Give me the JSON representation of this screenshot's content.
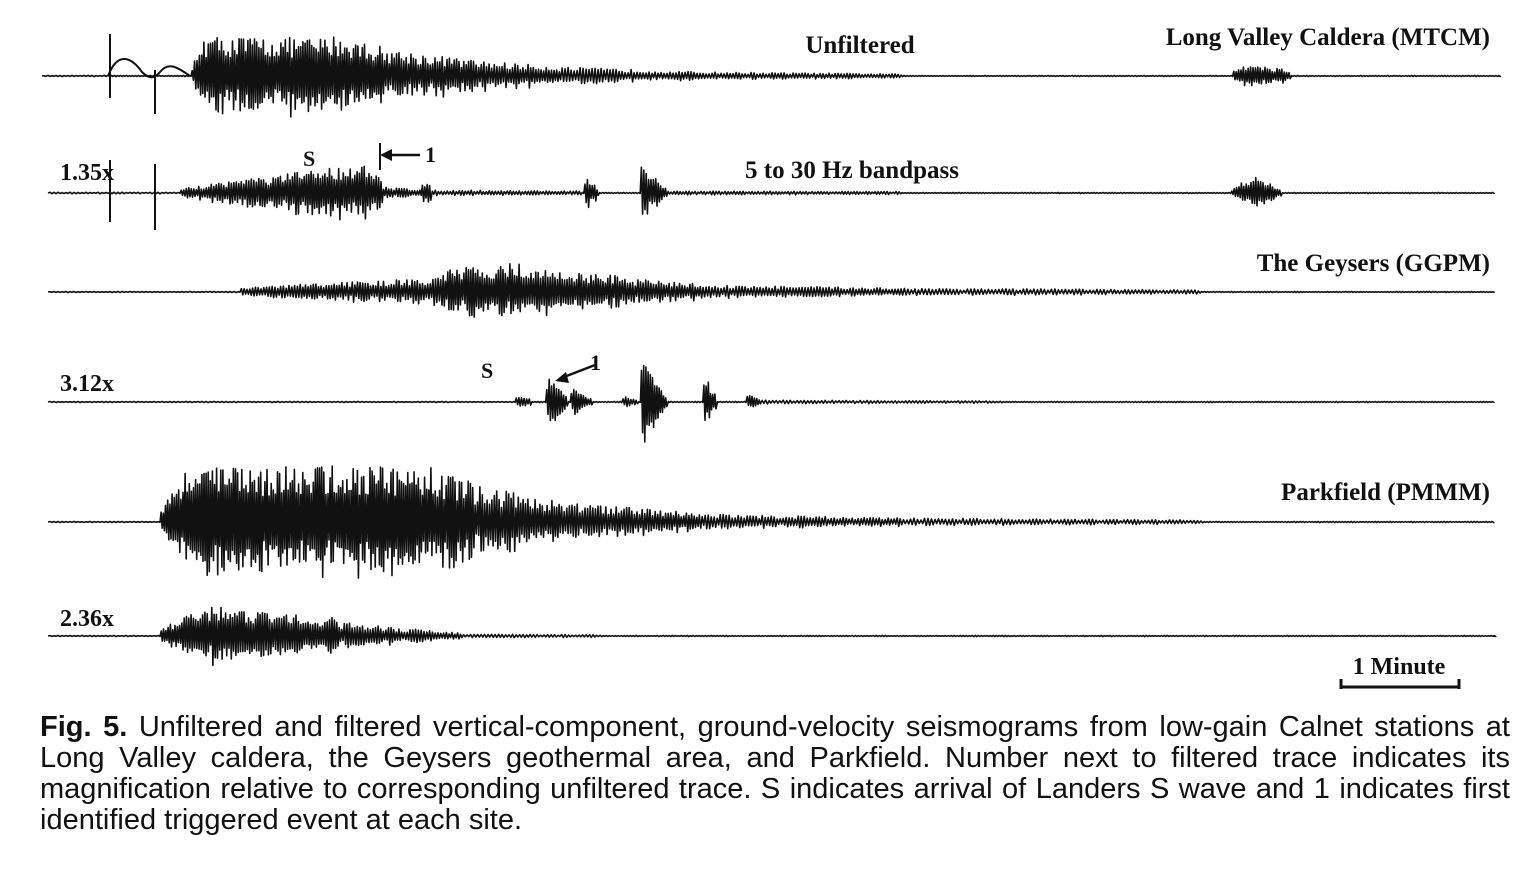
{
  "figure": {
    "traces": [
      {
        "id": "mtcm-unfiltered",
        "station_label": "Long Valley Caldera (MTCM)",
        "filter_label": "Unfiltered",
        "magnification": ""
      },
      {
        "id": "mtcm-filtered",
        "station_label": "",
        "filter_label": "5 to 30 Hz bandpass",
        "magnification": "1.35x"
      },
      {
        "id": "ggpm-unfiltered",
        "station_label": "The Geysers (GGPM)",
        "filter_label": "",
        "magnification": ""
      },
      {
        "id": "ggpm-filtered",
        "station_label": "",
        "filter_label": "",
        "magnification": "3.12x"
      },
      {
        "id": "pmmm-unfiltered",
        "station_label": "Parkfield (PMMM)",
        "filter_label": "",
        "magnification": ""
      },
      {
        "id": "pmmm-filtered",
        "station_label": "",
        "filter_label": "",
        "magnification": "2.36x"
      }
    ],
    "annotations": {
      "s_label": "S",
      "event_label": "1"
    },
    "scale_bar": {
      "label": "1 Minute"
    }
  },
  "caption": {
    "fig_label": "Fig. 5.",
    "text": "Unfiltered and filtered vertical-component, ground-velocity seismograms from low-gain Calnet stations at Long Valley caldera, the Geysers geothermal area, and Parkfield. Number next to filtered trace indicates its magnification relative to corresponding unfiltered trace. S indicates arrival of Landers S wave and 1 indicates first identified triggered event at each site."
  }
}
